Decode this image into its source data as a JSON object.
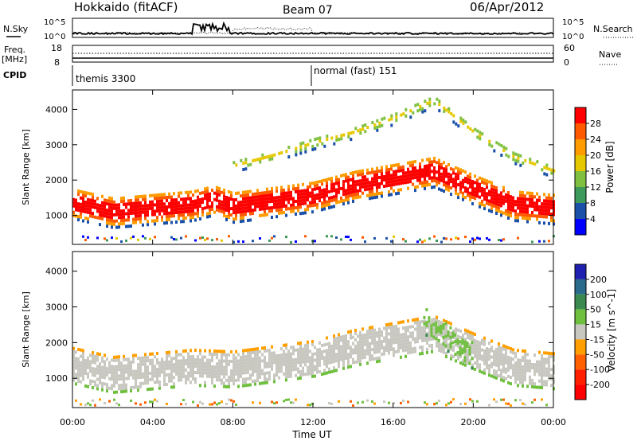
{
  "header": {
    "station": "Hokkaido (fitACF)",
    "beam": "Beam 07",
    "date": "06/Apr/2012"
  },
  "summary": {
    "nsky_label": "N.Sky",
    "nsearch_label": "N.Search",
    "nsky_ticks": [
      "10^5",
      "10^0"
    ],
    "nsky_ticks_right": [
      "10^5",
      "10^0"
    ],
    "freq_label": "Freq.",
    "freq_unit": "[MHz]",
    "freq_ticks": [
      "18",
      "8"
    ],
    "nave_label": "Nave",
    "nave_ticks": [
      "60",
      "0"
    ],
    "cpid_label": "CPID",
    "cpid_segments": [
      {
        "start_hour": 0,
        "label": "themis 3300"
      },
      {
        "start_hour": 12,
        "label": "normal (fast) 151"
      }
    ]
  },
  "chart_data": [
    {
      "type": "heatmap",
      "name": "power-panel",
      "ylabel": "Slant Range [km]",
      "ylim": [
        180,
        4550
      ],
      "yticks": [
        1000,
        2000,
        3000,
        4000
      ],
      "xlim_hours": [
        0,
        24
      ],
      "colorbar": {
        "label": "Power [dB]",
        "ticks": [
          "28",
          "24",
          "20",
          "16",
          "12",
          "8",
          "4"
        ],
        "colors": [
          "#ff0000",
          "#ff5a00",
          "#ff9c00",
          "#e6c800",
          "#7fc040",
          "#3c9a5a",
          "#1a50a8",
          "#0000ff"
        ]
      },
      "bands": [
        {
          "x": [
            0,
            2,
            4,
            6,
            7,
            8,
            10,
            12,
            14,
            16,
            18,
            20,
            22,
            24
          ],
          "y": [
            1400,
            1150,
            1250,
            1350,
            1500,
            1300,
            1450,
            1600,
            1900,
            2100,
            2300,
            1800,
            1350,
            1250
          ],
          "width": 450,
          "value": 26
        },
        {
          "x": [
            8,
            10,
            12,
            14,
            16,
            18,
            20,
            22,
            24
          ],
          "y": [
            2450,
            2750,
            3100,
            3400,
            3800,
            4300,
            3400,
            2700,
            2300
          ],
          "width": 180,
          "value": 20
        }
      ]
    },
    {
      "type": "heatmap",
      "name": "velocity-panel",
      "ylabel": "Slant Range [km]",
      "ylim": [
        180,
        4550
      ],
      "yticks": [
        1000,
        2000,
        3000,
        4000
      ],
      "xlim_hours": [
        0,
        24
      ],
      "xticks": [
        "00:00",
        "04:00",
        "08:00",
        "12:00",
        "16:00",
        "20:00",
        "00:00"
      ],
      "xlabel": "Time UT",
      "colorbar": {
        "label": "Velocity [m s^-1]",
        "ticks": [
          "200",
          "100",
          "50",
          "15",
          "-15",
          "-50",
          "-100",
          "-200"
        ],
        "colors": [
          "#2020b0",
          "#2a6a8a",
          "#3a8a50",
          "#70c040",
          "#c8c8c0",
          "#ffa000",
          "#ff6000",
          "#ff2000",
          "#ff0000"
        ]
      },
      "bands": [
        {
          "x": [
            0,
            2,
            4,
            6,
            8,
            10,
            12,
            14,
            16,
            18,
            20,
            22,
            24
          ],
          "y": [
            1400,
            1150,
            1250,
            1350,
            1300,
            1450,
            1600,
            1900,
            2100,
            2300,
            1800,
            1350,
            1250
          ],
          "width": 500,
          "value": 0
        },
        {
          "x": [
            17.5,
            18,
            18.5,
            19,
            19.5,
            20
          ],
          "y": [
            2700,
            2500,
            2300,
            2050,
            1850,
            1700
          ],
          "width": 400,
          "value": 20
        }
      ]
    }
  ]
}
